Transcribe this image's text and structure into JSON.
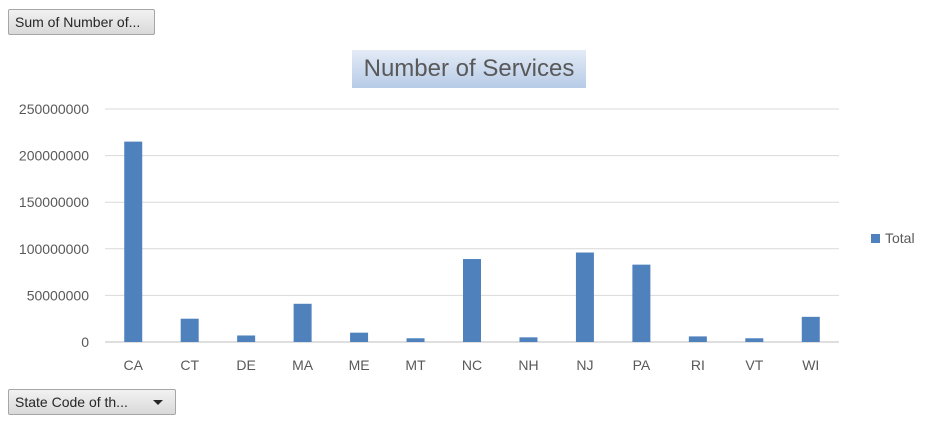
{
  "pivot": {
    "values_field_label": "Sum of Number of...",
    "axis_field_label": "State Code of th..."
  },
  "colors": {
    "bar": "#4f81bd",
    "gridline": "#d9d9d9",
    "text": "#595959"
  },
  "icons": {
    "axis_dropdown": "chevron-down-icon"
  },
  "chart_data": {
    "type": "bar",
    "title": "Number of Services",
    "xlabel": "",
    "ylabel": "",
    "categories": [
      "CA",
      "CT",
      "DE",
      "MA",
      "ME",
      "MT",
      "NC",
      "NH",
      "NJ",
      "PA",
      "RI",
      "VT",
      "WI"
    ],
    "series": [
      {
        "name": "Total",
        "values": [
          215000000,
          25000000,
          7000000,
          41000000,
          10000000,
          4000000,
          89000000,
          5000000,
          96000000,
          83000000,
          6000000,
          4000000,
          27000000
        ]
      }
    ],
    "ylim": [
      0,
      250000000
    ],
    "yticks": [
      "0",
      "50000000",
      "100000000",
      "150000000",
      "200000000",
      "250000000"
    ],
    "grid": true,
    "legend_position": "right"
  }
}
